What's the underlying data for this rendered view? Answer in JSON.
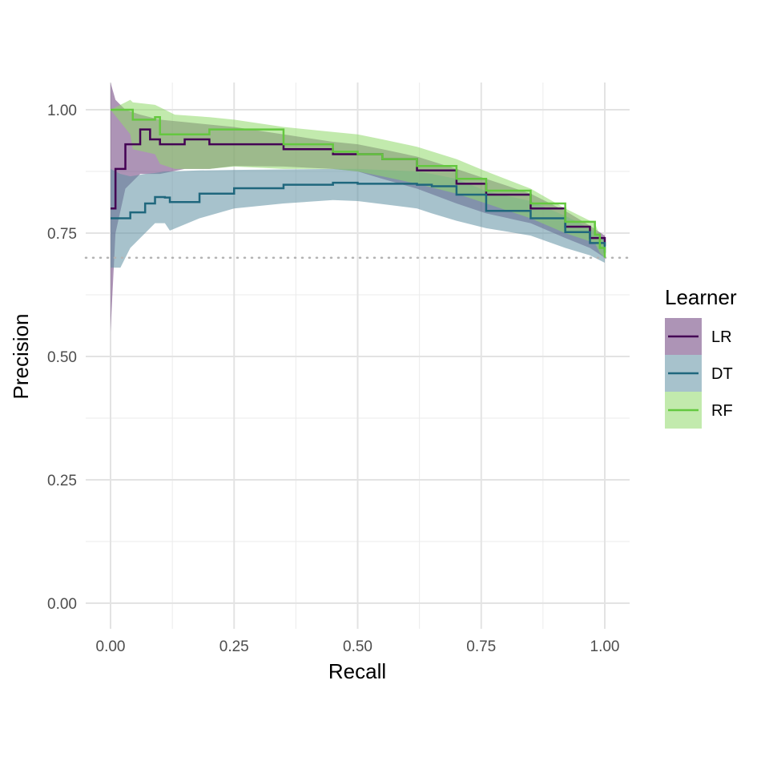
{
  "chart_data": {
    "type": "line",
    "title": "",
    "xlabel": "Recall",
    "ylabel": "Precision",
    "xlim": [
      -0.05,
      1.05
    ],
    "ylim": [
      -0.04,
      1.055
    ],
    "x_ticks": [
      "0.00",
      "0.25",
      "0.50",
      "0.75",
      "1.00"
    ],
    "x_tick_values": [
      0,
      0.25,
      0.5,
      0.75,
      1
    ],
    "y_ticks": [
      "0.00",
      "0.25",
      "0.50",
      "0.75",
      "1.00"
    ],
    "y_tick_values": [
      0,
      0.25,
      0.5,
      0.75,
      1
    ],
    "grid": true,
    "baseline": {
      "y": 0.7,
      "style": "dotted",
      "color": "#b3b3b3"
    },
    "legend": {
      "title": "Learner",
      "placement": "right"
    },
    "series": [
      {
        "name": "LR",
        "line_color": "#440154",
        "fill_color": "#6a3d7a",
        "x": [
          0.0,
          0.01,
          0.03,
          0.06,
          0.08,
          0.1,
          0.15,
          0.2,
          0.25,
          0.35,
          0.45,
          0.5,
          0.55,
          0.62,
          0.7,
          0.76,
          0.85,
          0.92,
          0.97,
          1.0
        ],
        "y": [
          0.8,
          0.88,
          0.93,
          0.96,
          0.94,
          0.93,
          0.94,
          0.93,
          0.93,
          0.92,
          0.91,
          0.91,
          0.9,
          0.877,
          0.85,
          0.828,
          0.8,
          0.763,
          0.74,
          0.724
        ],
        "lower": [
          0.55,
          0.75,
          0.84,
          0.87,
          0.87,
          0.87,
          0.88,
          0.88,
          0.886,
          0.885,
          0.88,
          0.875,
          0.86,
          0.84,
          0.81,
          0.79,
          0.77,
          0.74,
          0.72,
          0.7
        ],
        "upper": [
          1.055,
          1.02,
          1.0,
          0.99,
          0.985,
          0.98,
          0.975,
          0.97,
          0.965,
          0.95,
          0.935,
          0.93,
          0.92,
          0.905,
          0.88,
          0.86,
          0.83,
          0.795,
          0.765,
          0.745
        ]
      },
      {
        "name": "DT",
        "line_color": "#1f677d",
        "fill_color": "#5e8fa3",
        "x": [
          0.0,
          0.02,
          0.04,
          0.07,
          0.09,
          0.11,
          0.12,
          0.18,
          0.25,
          0.35,
          0.45,
          0.5,
          0.62,
          0.65,
          0.7,
          0.76,
          0.85,
          0.92,
          0.97,
          1.0
        ],
        "y": [
          0.78,
          0.78,
          0.792,
          0.81,
          0.823,
          0.822,
          0.813,
          0.83,
          0.841,
          0.848,
          0.852,
          0.85,
          0.848,
          0.845,
          0.828,
          0.795,
          0.78,
          0.752,
          0.73,
          0.71
        ],
        "lower": [
          0.68,
          0.68,
          0.72,
          0.75,
          0.77,
          0.77,
          0.755,
          0.78,
          0.8,
          0.81,
          0.817,
          0.815,
          0.8,
          0.79,
          0.775,
          0.76,
          0.745,
          0.72,
          0.705,
          0.69
        ],
        "upper": [
          0.88,
          0.87,
          0.865,
          0.87,
          0.872,
          0.875,
          0.875,
          0.877,
          0.878,
          0.879,
          0.88,
          0.88,
          0.875,
          0.87,
          0.86,
          0.835,
          0.815,
          0.785,
          0.76,
          0.735
        ]
      },
      {
        "name": "RF",
        "line_color": "#64c83f",
        "fill_color": "#8fd86a",
        "x": [
          0.0,
          0.04,
          0.045,
          0.09,
          0.1,
          0.13,
          0.2,
          0.25,
          0.35,
          0.45,
          0.5,
          0.55,
          0.62,
          0.7,
          0.76,
          0.85,
          0.92,
          0.98,
          0.99,
          1.0
        ],
        "y": [
          1.0,
          1.0,
          0.98,
          0.985,
          0.95,
          0.95,
          0.96,
          0.96,
          0.93,
          0.915,
          0.91,
          0.9,
          0.886,
          0.86,
          0.836,
          0.81,
          0.773,
          0.747,
          0.72,
          0.7
        ],
        "lower": [
          1.0,
          0.95,
          0.92,
          0.91,
          0.89,
          0.88,
          0.88,
          0.885,
          0.88,
          0.88,
          0.875,
          0.865,
          0.85,
          0.83,
          0.81,
          0.78,
          0.75,
          0.73,
          0.71,
          0.7
        ],
        "upper": [
          1.0,
          1.02,
          1.015,
          1.01,
          1.005,
          0.99,
          0.985,
          0.98,
          0.965,
          0.955,
          0.95,
          0.94,
          0.925,
          0.9,
          0.875,
          0.84,
          0.8,
          0.77,
          0.745,
          0.73
        ]
      }
    ]
  }
}
